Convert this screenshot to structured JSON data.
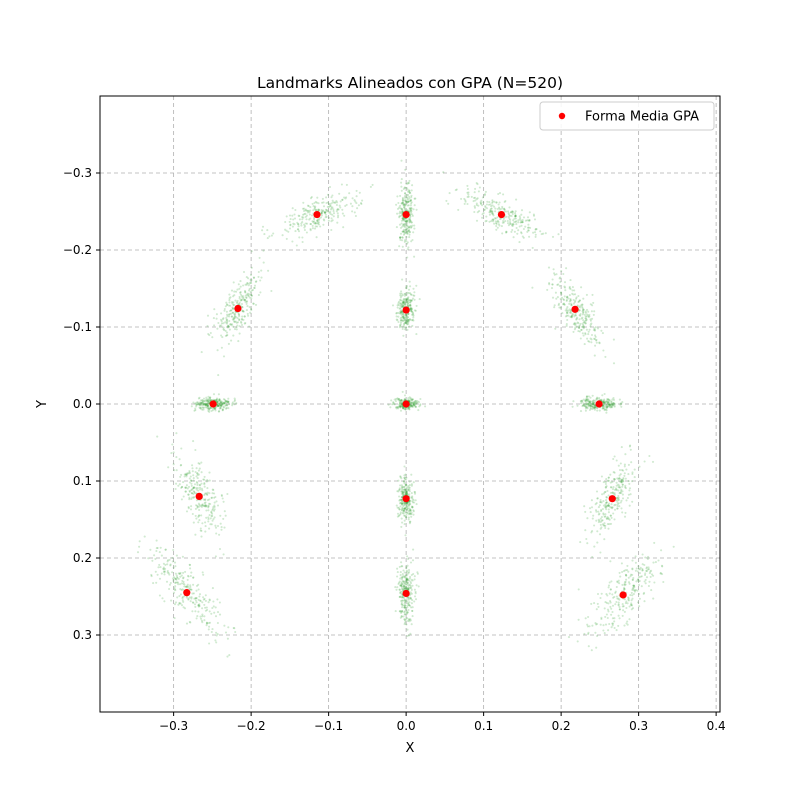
{
  "chart_data": {
    "type": "scatter",
    "title": "Landmarks Alineados con GPA (N=520)",
    "xlabel": "X",
    "ylabel": "Y",
    "xlim": [
      -0.395,
      0.405
    ],
    "ylim": [
      0.4,
      -0.4
    ],
    "y_inverted": true,
    "xticks": [
      -0.3,
      -0.2,
      -0.1,
      0.0,
      0.1,
      0.2,
      0.3,
      0.4
    ],
    "yticks": [
      -0.3,
      -0.2,
      -0.1,
      0.0,
      0.1,
      0.2,
      0.3
    ],
    "xtick_labels": [
      "−0.3",
      "−0.2",
      "−0.1",
      "0.0",
      "0.1",
      "0.2",
      "0.3",
      "0.4"
    ],
    "ytick_labels": [
      "−0.3",
      "−0.2",
      "−0.1",
      "0.0",
      "0.1",
      "0.2",
      "0.3"
    ],
    "grid": true,
    "legend": {
      "position": "top-right",
      "entries": [
        "Forma Media GPA"
      ]
    },
    "colors": {
      "mean": "#ff0000",
      "cloud": "#2ca02c"
    },
    "series": [
      {
        "name": "Forma Media GPA",
        "x": [
          0.0,
          0.0,
          0.0,
          0.0,
          0.0,
          -0.115,
          0.123,
          -0.217,
          0.218,
          -0.249,
          0.249,
          -0.267,
          0.266,
          -0.283,
          0.28
        ],
        "y": [
          -0.246,
          -0.122,
          0.0,
          0.123,
          0.246,
          -0.246,
          -0.246,
          -0.124,
          -0.123,
          0.0,
          0.0,
          0.12,
          0.123,
          0.245,
          0.248
        ]
      }
    ]
  }
}
